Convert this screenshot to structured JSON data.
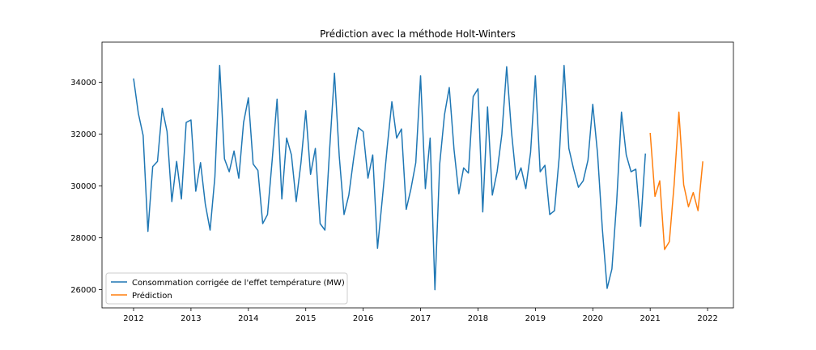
{
  "chart_data": {
    "type": "line",
    "title": "Prédiction avec la méthode Holt-Winters",
    "xlabel": "",
    "ylabel": "",
    "xlim": [
      2011.45,
      2022.45
    ],
    "ylim": [
      25300,
      35550
    ],
    "x_ticks": [
      2012,
      2013,
      2014,
      2015,
      2016,
      2017,
      2018,
      2019,
      2020,
      2021,
      2022
    ],
    "y_ticks": [
      26000,
      28000,
      30000,
      32000,
      34000
    ],
    "grid": false,
    "legend_position": "lower-left",
    "colors": {
      "consommation": "#1f77b4",
      "prediction": "#ff7f0e"
    },
    "series": [
      {
        "name": "Consommation corrigée de l'effet température (MW)",
        "color": "#1f77b4",
        "start": 2012.0,
        "step": 0.08333,
        "values": [
          34150,
          32800,
          31950,
          28250,
          30750,
          30950,
          33000,
          32100,
          29400,
          30950,
          29500,
          32450,
          32550,
          29800,
          30900,
          29300,
          28300,
          30350,
          34650,
          31050,
          30550,
          31350,
          30300,
          32450,
          33400,
          30850,
          30600,
          28550,
          28900,
          31050,
          33350,
          29500,
          31850,
          31200,
          29400,
          30900,
          32900,
          30450,
          31450,
          28550,
          28300,
          31450,
          34350,
          31150,
          28900,
          29650,
          31050,
          32250,
          32100,
          30300,
          31200,
          27600,
          29500,
          31450,
          33250,
          31850,
          32200,
          29100,
          29900,
          30900,
          34250,
          29900,
          31850,
          26000,
          30850,
          32750,
          33800,
          31400,
          29700,
          30700,
          30500,
          33450,
          33750,
          29000,
          33050,
          29650,
          30550,
          32000,
          34600,
          32100,
          30250,
          30700,
          29900,
          31300,
          34250,
          30550,
          30800,
          28900,
          29050,
          31150,
          34650,
          31450,
          30650,
          29950,
          30200,
          31000,
          33150,
          31250,
          28350,
          26050,
          26800,
          29400,
          32850,
          31200,
          30550,
          30650,
          28450,
          31250
        ]
      },
      {
        "name": "Prédiction",
        "color": "#ff7f0e",
        "start": 2021.0,
        "step": 0.08333,
        "values": [
          32050,
          29600,
          30200,
          27550,
          27850,
          30050,
          32850,
          30050,
          29200,
          29750,
          29050,
          30950
        ]
      }
    ]
  }
}
